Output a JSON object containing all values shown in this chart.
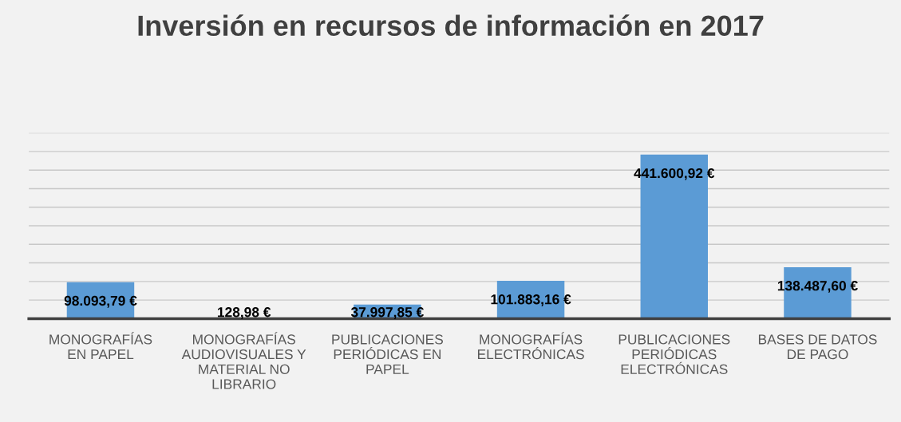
{
  "chart_data": {
    "type": "bar",
    "title": "Inversión en recursos de información en 2017",
    "categories": [
      "MONOGRAFÍAS\nEN PAPEL",
      "MONOGRAFÍAS\nAUDIOVISUALES Y\nMATERIAL NO\nLIBRARIO",
      "PUBLICACIONES\nPERIÓDICAS EN\nPAPEL",
      "MONOGRAFÍAS\nELECTRÓNICAS",
      "PUBLICACIONES\nPERIÓDICAS\nELECTRÓNICAS",
      "BASES DE DATOS\nDE PAGO"
    ],
    "values": [
      98093.79,
      128.98,
      37997.85,
      101883.16,
      441600.92,
      138487.6
    ],
    "value_labels": [
      "98.093,79 €",
      "128,98 €",
      "37.997,85 €",
      "101.883,16 €",
      "441.600,92 €",
      "138.487,60 €"
    ],
    "color": "#5b9bd5",
    "ylim": [
      0,
      500000
    ],
    "yticks": [
      {
        "value": 0,
        "label": null
      },
      {
        "value": 50000,
        "label": null
      },
      {
        "value": 100000,
        "label": null
      },
      {
        "value": 150000,
        "label": null
      },
      {
        "value": 200000,
        "label": null
      },
      {
        "value": 250000,
        "label": null
      },
      {
        "value": 300000,
        "label": null
      },
      {
        "value": 350000,
        "label": null
      },
      {
        "value": 400000,
        "label": null
      },
      {
        "value": 450000,
        "label": null
      },
      {
        "value": 500000,
        "label": null
      }
    ],
    "grid": "y",
    "tick_labels": "x"
  }
}
